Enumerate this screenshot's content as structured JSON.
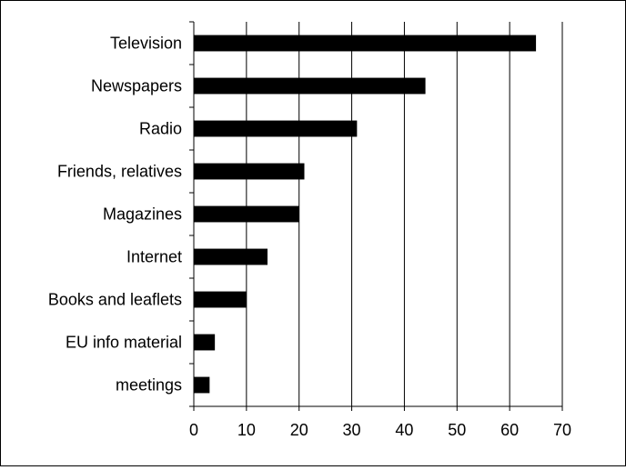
{
  "chart_data": {
    "type": "bar",
    "orientation": "horizontal",
    "title": "",
    "xlabel": "",
    "ylabel": "",
    "categories": [
      "meetings",
      "EU info material",
      "Books and leaflets",
      "Internet",
      "Magazines",
      "Friends, relatives",
      "Radio",
      "Newspapers",
      "Television"
    ],
    "values": [
      3,
      4,
      10,
      14,
      20,
      21,
      31,
      44,
      65
    ],
    "xlim": [
      0,
      70
    ],
    "xticks": [
      0,
      10,
      20,
      30,
      40,
      50,
      60,
      70
    ],
    "xtick_labels": [
      "0",
      "10",
      "20",
      "30",
      "40",
      "50",
      "60",
      "70"
    ],
    "grid": "vertical",
    "legend": "none",
    "bar_color": "#000000"
  }
}
